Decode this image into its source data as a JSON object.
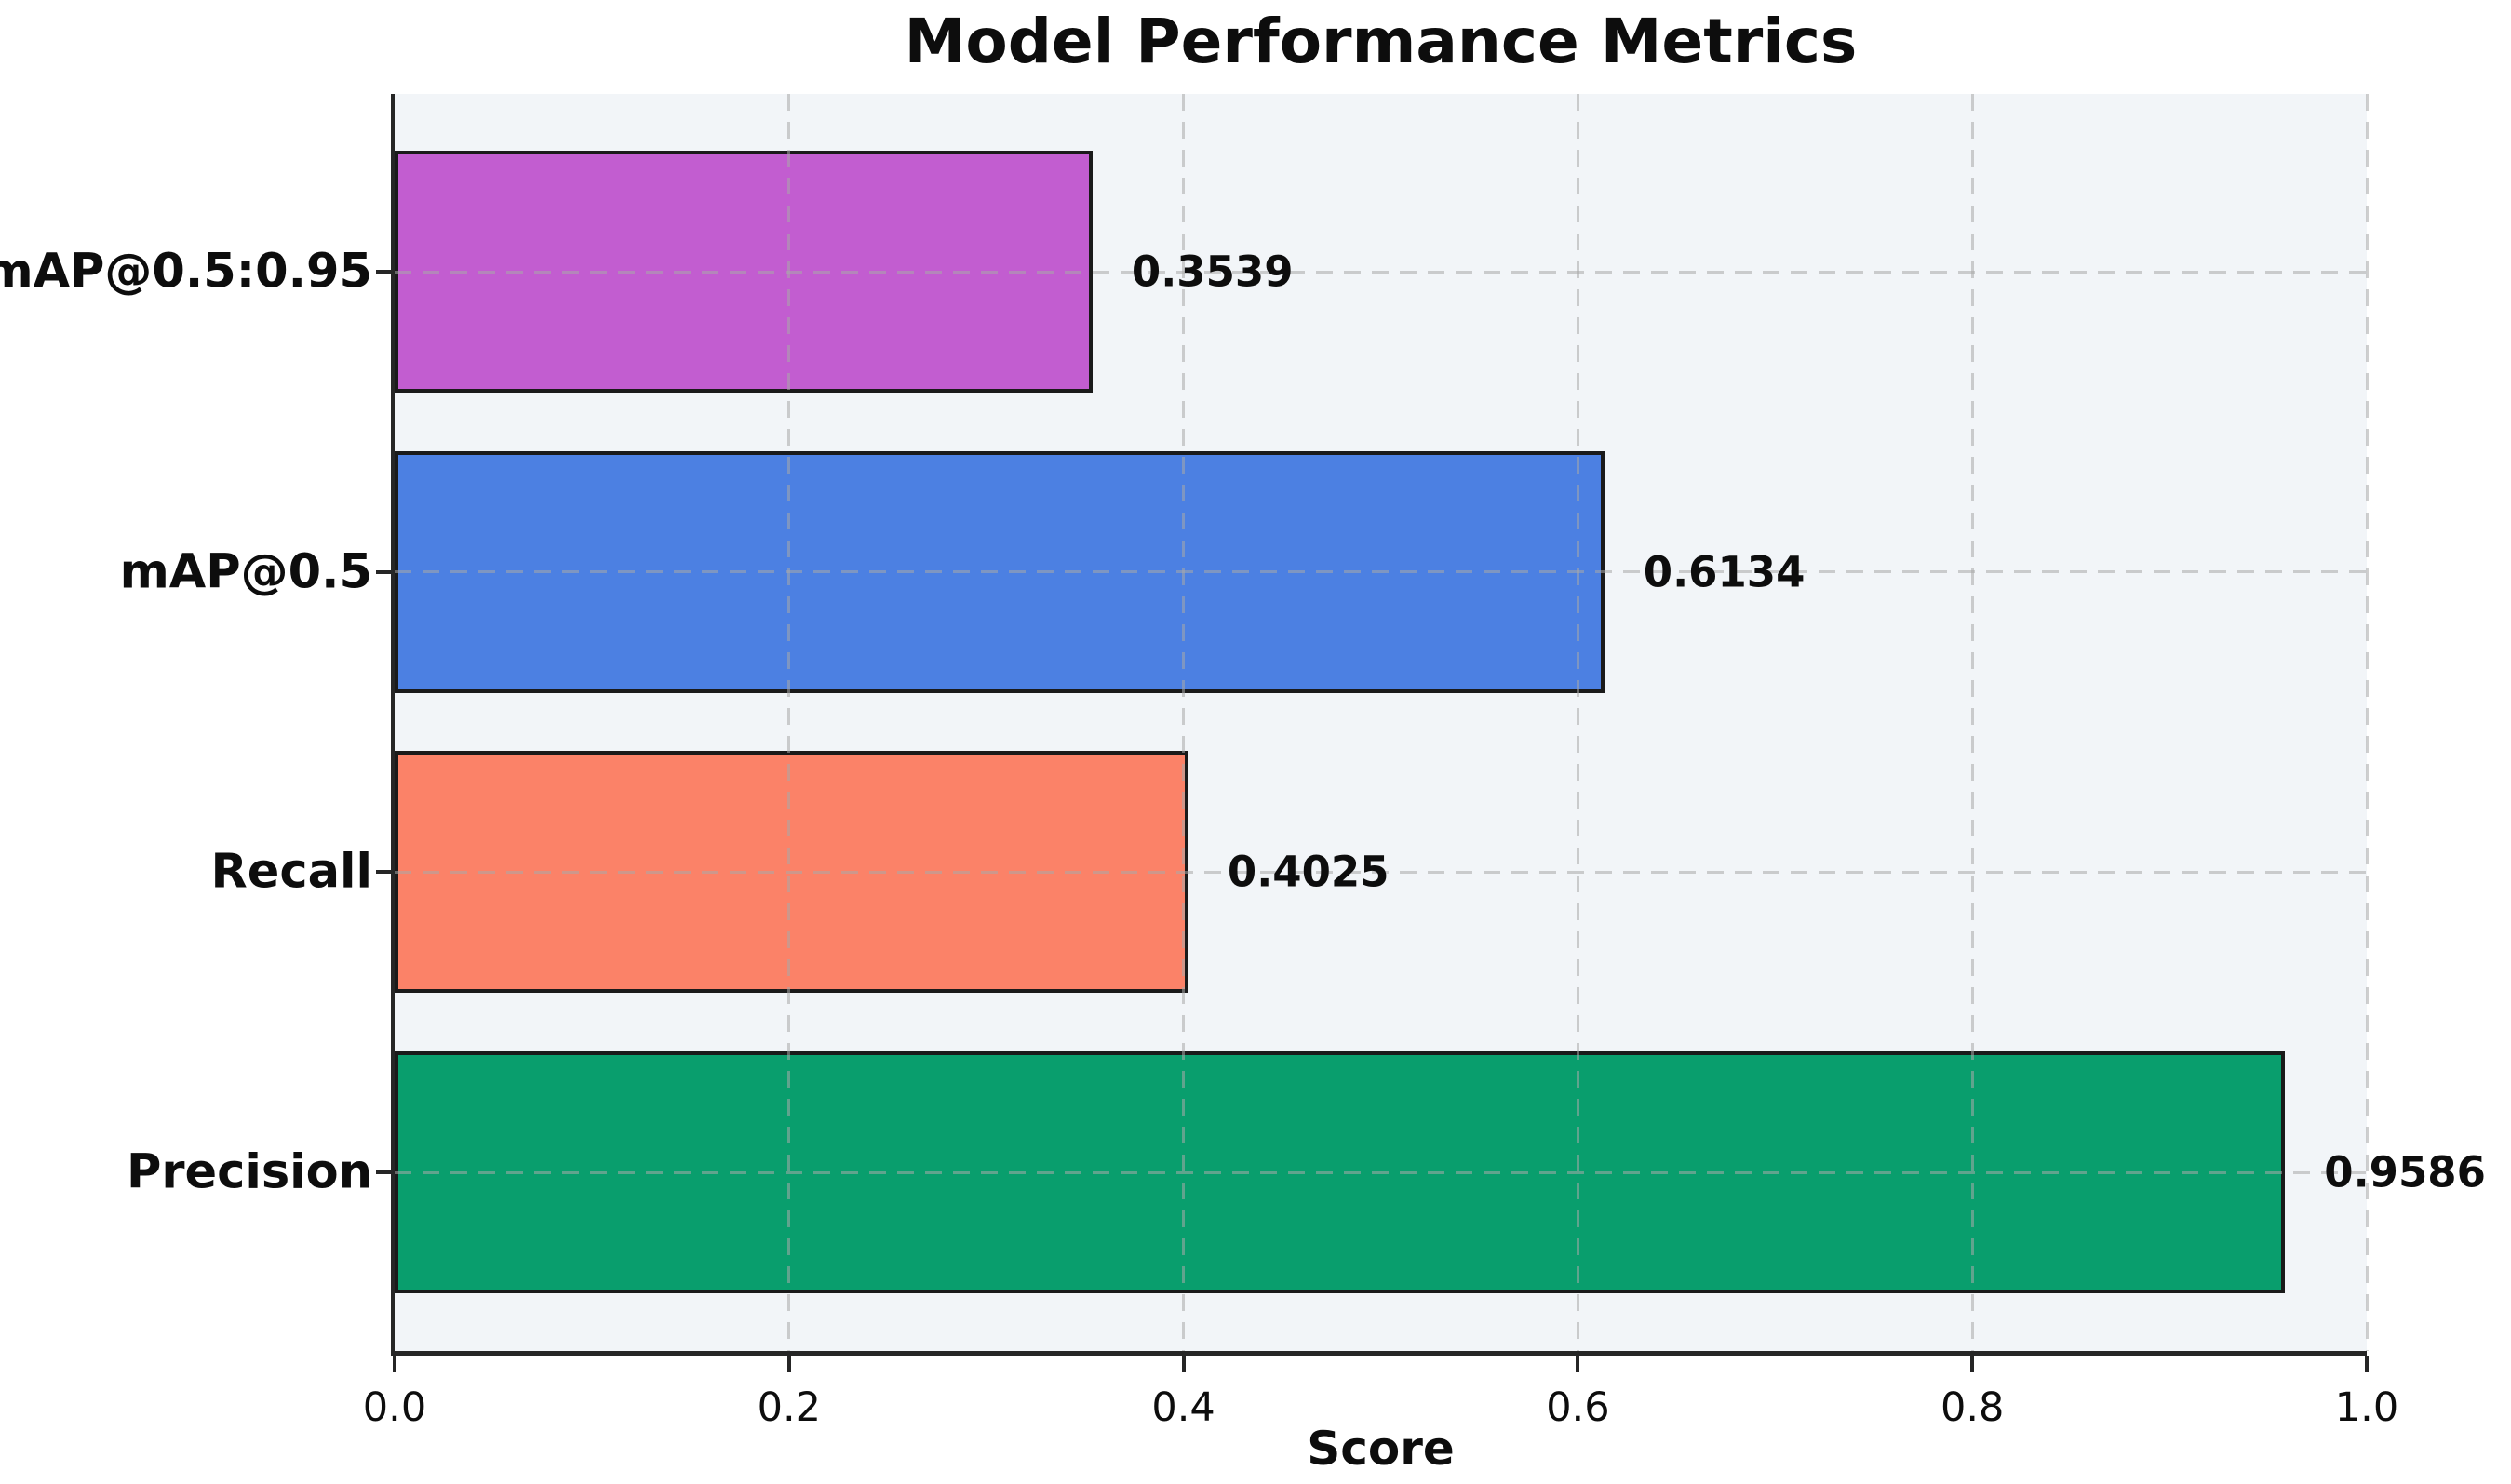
{
  "chart_data": {
    "type": "bar",
    "orientation": "horizontal",
    "title": "Model Performance Metrics",
    "xlabel": "Score",
    "ylabel": "",
    "categories_top_to_bottom": [
      "mAP@0.5:0.95",
      "mAP@0.5",
      "Recall",
      "Precision"
    ],
    "values": [
      0.3539,
      0.6134,
      0.4025,
      0.9586
    ],
    "value_labels": [
      "0.3539",
      "0.6134",
      "0.4025",
      "0.9586"
    ],
    "bar_colors": [
      "#c25dd0",
      "#4c80e2",
      "#fb8268",
      "#099e6d"
    ],
    "bar_edge_color": "#1a1a1a",
    "xlim": [
      0.0,
      1.0
    ],
    "x_tick_labels": [
      "0.0",
      "0.2",
      "0.4",
      "0.6",
      "0.8",
      "1.0"
    ],
    "x_tick_values": [
      0.0,
      0.2,
      0.4,
      0.6,
      0.8,
      1.0
    ],
    "grid": "dashed x and y gridlines, drawn above bars",
    "legend": "none",
    "plot_background": "#f2f5f8",
    "figure_background": "#ffffff",
    "spine_color": "#262626",
    "text_color": "#0d0d0d"
  }
}
